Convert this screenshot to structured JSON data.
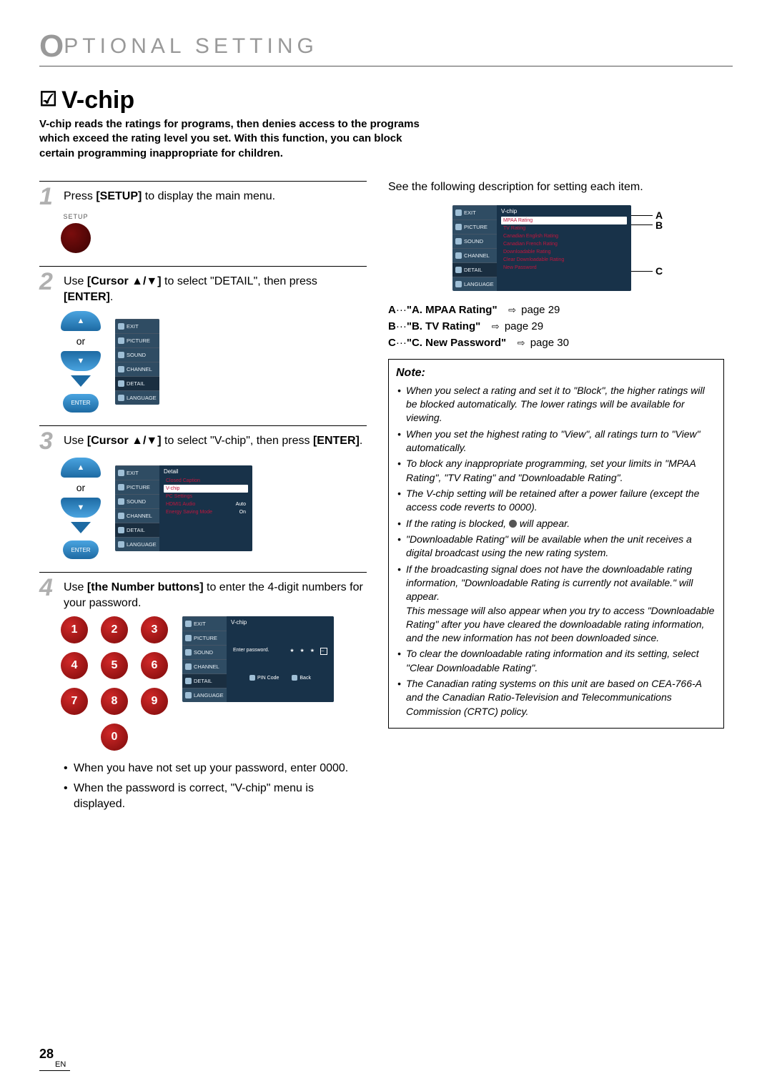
{
  "header": "PTIONAL  SETTING",
  "section": {
    "title": "V-chip"
  },
  "intro": "V-chip reads the ratings for programs, then denies access to the programs which exceed the rating level you set. With this function, you can block certain programming inappropriate for children.",
  "steps": {
    "1": {
      "text_pre": "Press ",
      "key": "[SETUP]",
      "text_post": " to display the main menu.",
      "setup_label": "SETUP"
    },
    "2": {
      "text_pre": "Use ",
      "key": "[Cursor ▲/▼]",
      "text_mid": " to select \"DETAIL\", then press ",
      "key2": "[ENTER]",
      "text_post": "."
    },
    "3": {
      "text_pre": "Use ",
      "key": "[Cursor ▲/▼]",
      "text_mid": " to select \"V-chip\", then press ",
      "key2": "[ENTER]",
      "text_post": "."
    },
    "4": {
      "text_pre": "Use ",
      "key": "[the Number buttons]",
      "text_post": " to enter the 4-digit numbers for your password."
    }
  },
  "or_label": "or",
  "enter_label": "ENTER",
  "menu_side": [
    "EXIT",
    "PICTURE",
    "SOUND",
    "CHANNEL",
    "DETAIL",
    "LANGUAGE"
  ],
  "menu2_body": {
    "title": "",
    "rows": []
  },
  "menu3_body": {
    "title": "Detail",
    "rows": [
      {
        "label": "Closed Caption",
        "val": ""
      },
      {
        "label": "V-chip",
        "val": "",
        "hl": true
      },
      {
        "label": "PC Settings",
        "val": ""
      },
      {
        "label": "HDMI1 Audio",
        "val": "Auto"
      },
      {
        "label": "Energy Saving Mode",
        "val": "On"
      }
    ]
  },
  "menu4_body": {
    "title": "V-chip",
    "prompt": "Enter password.",
    "stars": "★  ★  ★",
    "footer": [
      "PIN Code",
      "Back"
    ]
  },
  "numpad": [
    "1",
    "2",
    "3",
    "4",
    "5",
    "6",
    "7",
    "8",
    "9",
    "0"
  ],
  "sub_bullets": [
    "When you have not set up your password, enter 0000.",
    "When the password is correct, \"V-chip\" menu is displayed."
  ],
  "right_intro": "See the following description for setting each item.",
  "vchip_menu": {
    "title": "V-chip",
    "items": [
      "MPAA Rating",
      "TV Rating",
      "Canadian English Rating",
      "Canadian French Rating",
      "Downloadable Rating",
      "Clear Downloadable Rating",
      "New Password"
    ]
  },
  "pointers": {
    "A": "A",
    "B": "B",
    "C": "C"
  },
  "refs": [
    {
      "k": "A",
      "label": "\"A. MPAA Rating\"",
      "page": "page 29"
    },
    {
      "k": "B",
      "label": "\"B. TV Rating\"",
      "page": "page 29"
    },
    {
      "k": "C",
      "label": "\"C. New Password\"",
      "page": "page 30"
    }
  ],
  "note_title": "Note:",
  "notes": [
    "When you select a rating and set it to \"Block\", the higher ratings will be blocked automatically. The lower ratings will be available for viewing.",
    "When you set the highest rating to \"View\", all ratings turn to \"View\" automatically.",
    "To block any inappropriate programming, set your limits in \"MPAA Rating\", \"TV Rating\" and \"Downloadable Rating\".",
    "The V-chip setting will be retained after a power failure (except the access code reverts to 0000).",
    "If the rating is blocked, 🔒 will appear.",
    "\"Downloadable Rating\" will be available when the unit receives a digital broadcast using the new rating system.",
    "If the broadcasting signal does not have the downloadable rating information, \"Downloadable Rating is currently not available.\" will appear.\nThis message will also appear when you try to access \"Downloadable Rating\" after you have cleared the downloadable rating information, and the new information has not been downloaded since.",
    "To clear the downloadable rating information and its setting, select \"Clear Downloadable Rating\".",
    "The Canadian rating systems on this unit are based on CEA-766-A and the Canadian Ratio-Television and Telecommunications Commission (CRTC) policy."
  ],
  "page_number": "28",
  "page_lang": "EN"
}
